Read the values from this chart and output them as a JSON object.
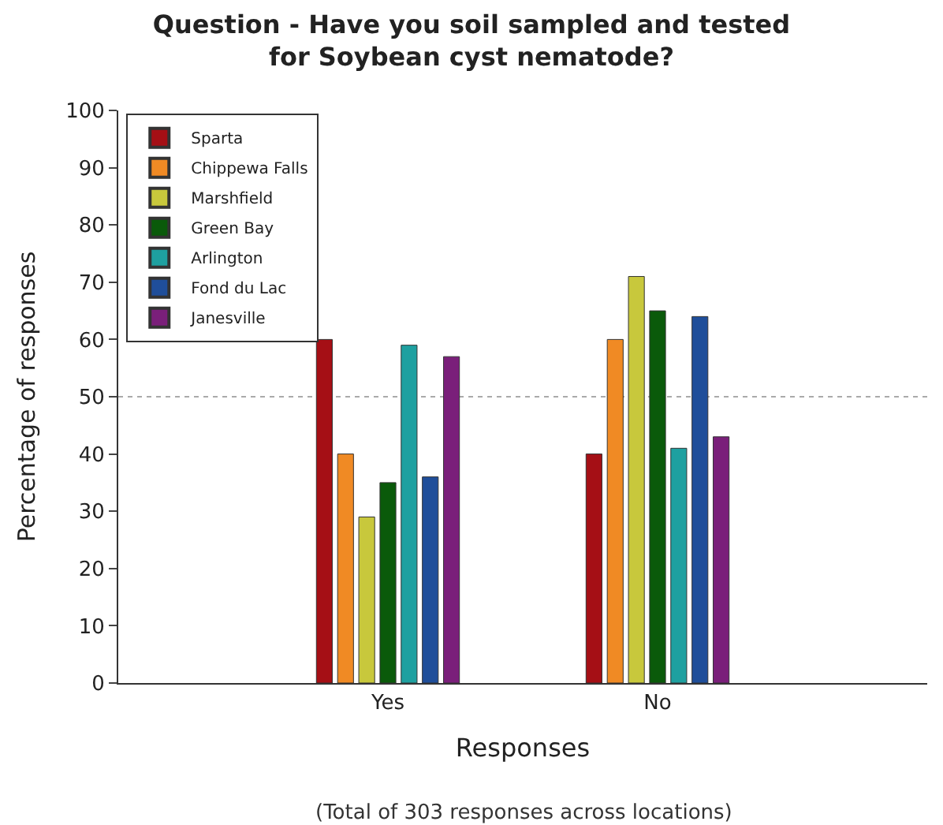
{
  "chart_data": {
    "type": "bar",
    "title": "Question - Have you soil sampled and tested\nfor Soybean cyst nematode?",
    "xlabel": "Responses",
    "ylabel": "Percentage of responses",
    "annotations": [
      "(Total of 303 responses across locations)"
    ],
    "categories": [
      "Yes",
      "No"
    ],
    "series": [
      {
        "name": "Sparta",
        "color": "#a50f15",
        "values": [
          60,
          40
        ]
      },
      {
        "name": "Chippewa Falls",
        "color": "#f08a24",
        "values": [
          40,
          60
        ]
      },
      {
        "name": "Marshfield",
        "color": "#c8c83c",
        "values": [
          29,
          71
        ]
      },
      {
        "name": "Green Bay",
        "color": "#0a5a0a",
        "values": [
          35,
          65
        ]
      },
      {
        "name": "Arlington",
        "color": "#1ea0a0",
        "values": [
          59,
          41
        ]
      },
      {
        "name": "Fond du Lac",
        "color": "#1f4e9a",
        "values": [
          36,
          64
        ]
      },
      {
        "name": "Janesville",
        "color": "#7a1f7a",
        "values": [
          57,
          43
        ]
      }
    ],
    "ylim": [
      0,
      100
    ],
    "yticks": [
      0,
      10,
      20,
      30,
      40,
      50,
      60,
      70,
      80,
      90,
      100
    ],
    "ref_lines": [
      {
        "axis": "y",
        "value": 50,
        "label": null,
        "color": "#aaaaaa",
        "line_style": "dotted"
      }
    ],
    "grid": false,
    "legend": "top left"
  }
}
